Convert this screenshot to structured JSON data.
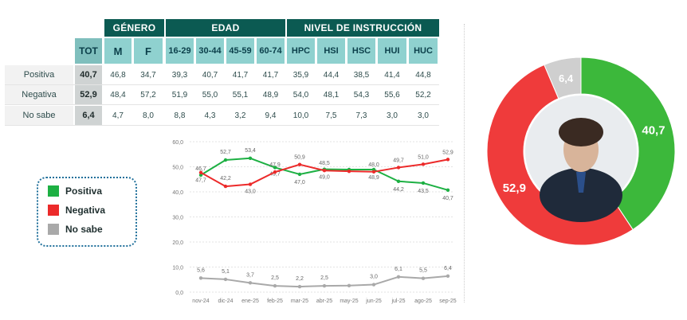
{
  "table": {
    "groups": [
      {
        "label": "GÉNERO"
      },
      {
        "label": "EDAD"
      },
      {
        "label": "NIVEL DE INSTRUCCIÓN"
      }
    ],
    "columns": [
      "TOT",
      "M",
      "F",
      "16-29",
      "30-44",
      "45-59",
      "60-74",
      "HPC",
      "HSI",
      "HSC",
      "HUI",
      "HUC"
    ],
    "rows": [
      {
        "label": "Positiva",
        "values": [
          "40,7",
          "46,8",
          "34,7",
          "39,3",
          "40,7",
          "41,7",
          "41,7",
          "35,9",
          "44,4",
          "38,5",
          "41,4",
          "44,8"
        ]
      },
      {
        "label": "Negativa",
        "values": [
          "52,9",
          "48,4",
          "57,2",
          "51,9",
          "55,0",
          "55,1",
          "48,9",
          "54,0",
          "48,1",
          "54,3",
          "55,6",
          "52,2"
        ]
      },
      {
        "label": "No sabe",
        "values": [
          "6,4",
          "4,7",
          "8,0",
          "8,8",
          "4,3",
          "3,2",
          "9,4",
          "10,0",
          "7,5",
          "7,3",
          "3,0",
          "3,0"
        ]
      }
    ]
  },
  "legend": [
    {
      "label": "Positiva",
      "color": "#1db043"
    },
    {
      "label": "Negativa",
      "color": "#ec2a2a"
    },
    {
      "label": "No sabe",
      "color": "#a9a9a9"
    }
  ],
  "chart_data": [
    {
      "type": "line",
      "x": [
        "nov-24",
        "dic-24",
        "ene-25",
        "feb-25",
        "mar-25",
        "abr-25",
        "may-25",
        "jun-25",
        "jul-25",
        "ago-25",
        "sep-25"
      ],
      "ylim": [
        0,
        60
      ],
      "yticks": [
        "0,0",
        "10,0",
        "20,0",
        "30,0",
        "40,0",
        "50,0",
        "60,0"
      ],
      "grid": true,
      "series": [
        {
          "name": "Positiva",
          "color": "#1db043",
          "values": [
            46.7,
            52.7,
            53.4,
            49.7,
            47.0,
            49.0,
            48.9,
            48.9,
            44.2,
            43.5,
            40.7
          ],
          "labels": [
            "46,7",
            "52,7",
            "53,4",
            "49,7",
            "47,0",
            "49,0",
            "",
            "48,9",
            "44,2",
            "43,5",
            "40,7"
          ]
        },
        {
          "name": "Negativa",
          "color": "#ec2a2a",
          "values": [
            47.7,
            42.2,
            43.0,
            47.9,
            50.9,
            48.5,
            48.2,
            48.0,
            49.7,
            51.0,
            52.9
          ],
          "labels": [
            "47,7",
            "42,2",
            "43,0",
            "47,9",
            "50,9",
            "48,5",
            "",
            "48,0",
            "49,7",
            "51,0",
            "52,9"
          ]
        },
        {
          "name": "No sabe",
          "color": "#a9a9a9",
          "values": [
            5.6,
            5.1,
            3.7,
            2.5,
            2.2,
            2.5,
            2.6,
            3.0,
            6.1,
            5.5,
            6.4
          ],
          "labels": [
            "5,6",
            "5,1",
            "3,7",
            "2,5",
            "2,2",
            "2,5",
            "",
            "3,0",
            "6,1",
            "5,5",
            "6,4"
          ]
        }
      ]
    },
    {
      "type": "pie",
      "categories": [
        "Positiva",
        "Negativa",
        "No sabe"
      ],
      "values": [
        40.7,
        52.9,
        6.4
      ],
      "labels": [
        "40,7",
        "52,9",
        "6,4"
      ],
      "colors": [
        "#3cb83b",
        "#ef3b3b",
        "#cfcfcf"
      ]
    }
  ]
}
